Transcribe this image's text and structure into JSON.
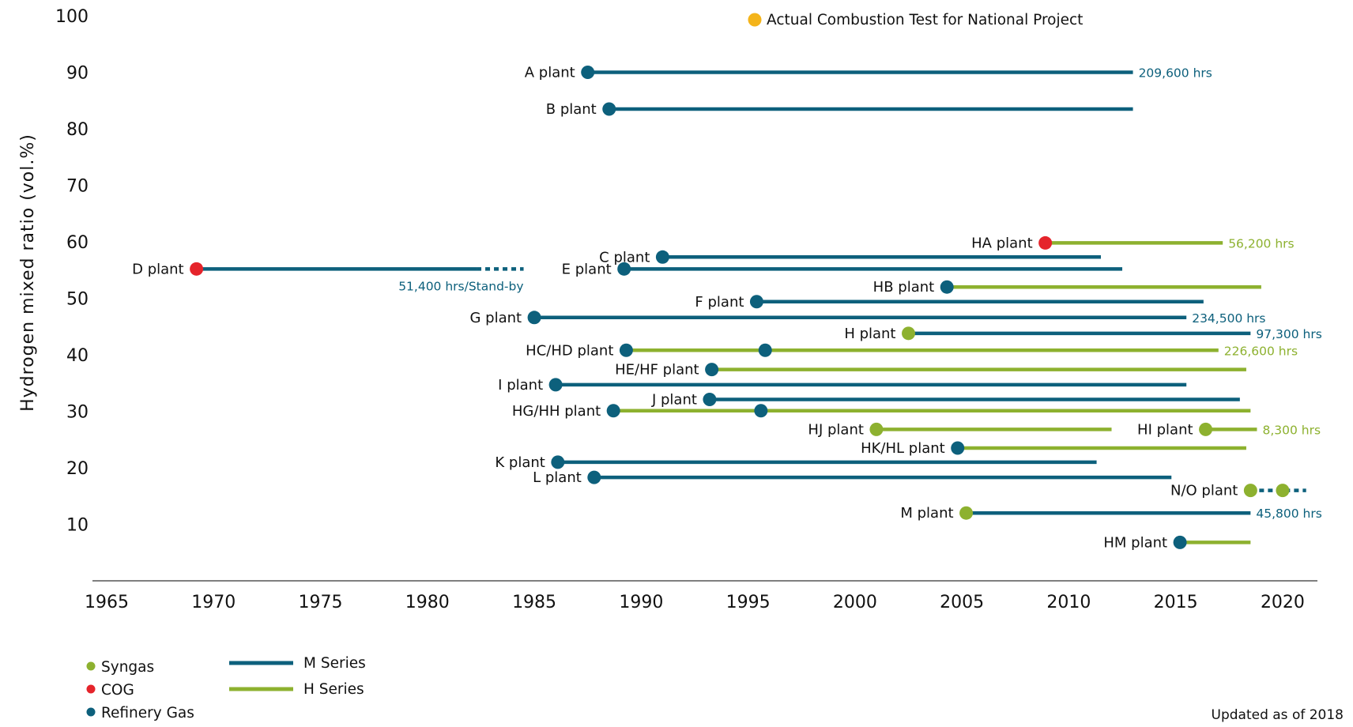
{
  "chart_data": {
    "type": "timeline",
    "ylabel": "Hydrogen mixed ratio (vol.%)",
    "xlim": [
      1965,
      2021
    ],
    "ylim": [
      0,
      100
    ],
    "x_ticks": [
      "1965",
      "1970",
      "1975",
      "1980",
      "1985",
      "1990",
      "1995",
      "2000",
      "2005",
      "2010",
      "2015",
      "2020"
    ],
    "y_ticks": [
      "10",
      "20",
      "30",
      "40",
      "50",
      "60",
      "70",
      "80",
      "90",
      "100"
    ],
    "colors": {
      "syngas": "#8db12f",
      "cog": "#e5242b",
      "refinery": "#0d607c",
      "m_series": "#0d607c",
      "h_series": "#8db12f",
      "national": "#f4b41a"
    },
    "plants": [
      {
        "label": "A plant",
        "y": 90,
        "segments": [
          {
            "series": "M",
            "start": 1987.5,
            "end": 2013.0
          }
        ],
        "markers": [
          {
            "gas": "refinery",
            "x": 1987.5
          }
        ],
        "hours": "209,600 hrs",
        "hours_series": "M"
      },
      {
        "label": "B plant",
        "y": 83.5,
        "segments": [
          {
            "series": "M",
            "start": 1988.5,
            "end": 2013.0
          }
        ],
        "markers": [
          {
            "gas": "refinery",
            "x": 1988.5
          }
        ]
      },
      {
        "label": "HA plant",
        "y": 59.8,
        "segments": [
          {
            "series": "H",
            "start": 2008.9,
            "end": 2017.2
          }
        ],
        "markers": [
          {
            "gas": "cog",
            "x": 2008.9
          }
        ],
        "hours": "56,200 hrs",
        "hours_series": "H"
      },
      {
        "label": "C plant",
        "y": 57.3,
        "segments": [
          {
            "series": "M",
            "start": 1991.0,
            "end": 2011.5
          }
        ],
        "markers": [
          {
            "gas": "refinery",
            "x": 1991.0
          }
        ]
      },
      {
        "label": "D plant",
        "y": 55.2,
        "segments": [
          {
            "series": "M",
            "start": 1969.2,
            "end": 1982.3
          },
          {
            "series": "M",
            "start": 1982.3,
            "end": 1984.5,
            "dashed": true
          }
        ],
        "markers": [
          {
            "gas": "cog",
            "x": 1969.2
          }
        ],
        "hours": "51,400 hrs/Stand-by",
        "hours_series": "M"
      },
      {
        "label": "E plant",
        "y": 55.2,
        "segments": [
          {
            "series": "M",
            "start": 1989.2,
            "end": 2012.5
          }
        ],
        "markers": [
          {
            "gas": "refinery",
            "x": 1989.2
          }
        ]
      },
      {
        "label": "HB plant",
        "y": 52.0,
        "segments": [
          {
            "series": "H",
            "start": 2004.3,
            "end": 2019.0
          }
        ],
        "markers": [
          {
            "gas": "refinery",
            "x": 2004.3
          }
        ]
      },
      {
        "label": "F plant",
        "y": 49.4,
        "segments": [
          {
            "series": "M",
            "start": 1995.4,
            "end": 2016.3
          }
        ],
        "markers": [
          {
            "gas": "refinery",
            "x": 1995.4
          }
        ]
      },
      {
        "label": "G plant",
        "y": 46.6,
        "segments": [
          {
            "series": "M",
            "start": 1985.0,
            "end": 2015.5
          }
        ],
        "markers": [
          {
            "gas": "refinery",
            "x": 1985.0
          }
        ],
        "hours": "234,500 hrs",
        "hours_series": "M"
      },
      {
        "label": "H plant",
        "y": 43.8,
        "segments": [
          {
            "series": "M",
            "start": 2002.5,
            "end": 2018.5
          }
        ],
        "markers": [
          {
            "gas": "syngas",
            "x": 2002.5
          }
        ],
        "hours": "97,300 hrs",
        "hours_series": "M"
      },
      {
        "label": "HC/HD plant",
        "y": 40.8,
        "segments": [
          {
            "series": "H",
            "start": 1989.3,
            "end": 2017.0
          }
        ],
        "markers": [
          {
            "gas": "refinery",
            "x": 1989.3
          },
          {
            "gas": "refinery",
            "x": 1995.8
          }
        ],
        "hours": "226,600 hrs",
        "hours_series": "H"
      },
      {
        "label": "HE/HF plant",
        "y": 37.4,
        "segments": [
          {
            "series": "H",
            "start": 1993.3,
            "end": 2018.3
          }
        ],
        "markers": [
          {
            "gas": "refinery",
            "x": 1993.3
          }
        ]
      },
      {
        "label": "I plant",
        "y": 34.7,
        "segments": [
          {
            "series": "M",
            "start": 1986.0,
            "end": 2015.5
          }
        ],
        "markers": [
          {
            "gas": "refinery",
            "x": 1986.0
          }
        ]
      },
      {
        "label": "J plant",
        "y": 32.1,
        "segments": [
          {
            "series": "M",
            "start": 1993.2,
            "end": 2018.0
          }
        ],
        "markers": [
          {
            "gas": "refinery",
            "x": 1993.2
          }
        ]
      },
      {
        "label": "HG/HH plant",
        "y": 30.1,
        "segments": [
          {
            "series": "H",
            "start": 1988.7,
            "end": 2018.5
          }
        ],
        "markers": [
          {
            "gas": "refinery",
            "x": 1988.7
          },
          {
            "gas": "refinery",
            "x": 1995.6
          }
        ]
      },
      {
        "label": "HJ plant",
        "y": 26.8,
        "segments": [
          {
            "series": "H",
            "start": 2001.0,
            "end": 2012.0
          }
        ],
        "markers": [
          {
            "gas": "syngas",
            "x": 2001.0
          }
        ]
      },
      {
        "label": "HI plant",
        "y": 26.8,
        "segments": [
          {
            "series": "H",
            "start": 2016.4,
            "end": 2018.8
          }
        ],
        "markers": [
          {
            "gas": "syngas",
            "x": 2016.4
          }
        ],
        "hours": "8,300 hrs",
        "hours_series": "H"
      },
      {
        "label": "HK/HL plant",
        "y": 23.5,
        "segments": [
          {
            "series": "H",
            "start": 2004.8,
            "end": 2018.3
          }
        ],
        "markers": [
          {
            "gas": "refinery",
            "x": 2004.8
          }
        ]
      },
      {
        "label": "K plant",
        "y": 21.0,
        "segments": [
          {
            "series": "M",
            "start": 1986.1,
            "end": 2011.3
          }
        ],
        "markers": [
          {
            "gas": "refinery",
            "x": 1986.1
          }
        ]
      },
      {
        "label": "L plant",
        "y": 18.3,
        "segments": [
          {
            "series": "M",
            "start": 1987.8,
            "end": 2014.8
          }
        ],
        "markers": [
          {
            "gas": "refinery",
            "x": 1987.8
          }
        ]
      },
      {
        "label": "N/O plant",
        "y": 16.0,
        "segments": [
          {
            "series": "M",
            "start": 2018.5,
            "end": 2021.1,
            "dashed": true
          }
        ],
        "markers": [
          {
            "gas": "syngas",
            "x": 2018.5
          },
          {
            "gas": "syngas",
            "x": 2020.0
          }
        ]
      },
      {
        "label": "M plant",
        "y": 12.0,
        "segments": [
          {
            "series": "M",
            "start": 2005.2,
            "end": 2018.5
          }
        ],
        "markers": [
          {
            "gas": "syngas",
            "x": 2005.2
          }
        ],
        "hours": "45,800 hrs",
        "hours_series": "M"
      },
      {
        "label": "HM plant",
        "y": 6.8,
        "segments": [
          {
            "series": "H",
            "start": 2015.2,
            "end": 2018.5
          }
        ],
        "markers": [
          {
            "gas": "refinery",
            "x": 2015.2
          }
        ]
      }
    ],
    "national_project_label": "Actual Combustion Test for National Project",
    "legend_gas": [
      {
        "key": "syngas",
        "label": "Syngas"
      },
      {
        "key": "cog",
        "label": "COG"
      },
      {
        "key": "refinery",
        "label": "Refinery Gas"
      }
    ],
    "legend_series": [
      {
        "key": "m_series",
        "label": "M Series"
      },
      {
        "key": "h_series",
        "label": "H Series"
      }
    ],
    "note": "Updated as of 2018"
  }
}
